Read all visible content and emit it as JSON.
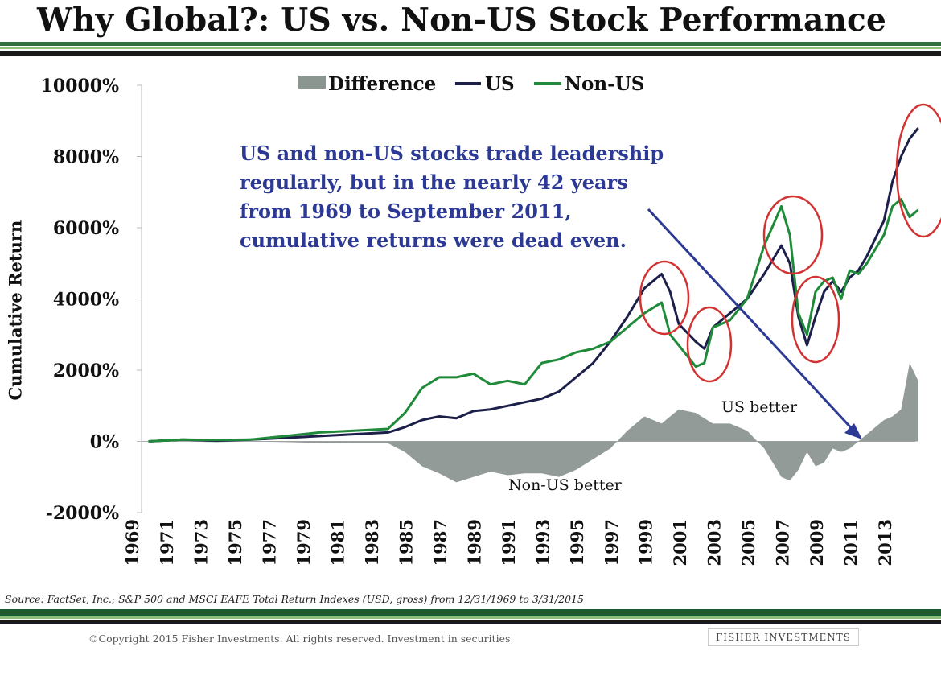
{
  "header": {
    "title": "Why Global?: US vs. Non-US Stock Performance"
  },
  "footer": {
    "source": "Source: FactSet, Inc.; S&P 500 and MSCI EAFE Total Return Indexes (USD, gross) from 12/31/1969 to 3/31/2015",
    "copyright": "©Copyright 2015 Fisher Investments. All rights reserved. Investment in securities",
    "brand": "FISHER INVESTMENTS"
  },
  "annotations": {
    "callout": [
      "US and non-US stocks trade leadership",
      "regularly, but in the nearly 42 years",
      "from 1969 to September 2011,",
      "cumulative returns were dead even."
    ],
    "us_better": "US better",
    "non_us_better": "Non-US better"
  },
  "colors": {
    "us": "#1c1f4a",
    "non_us": "#1f8a3a",
    "difference": "#8c9691",
    "highlight": "#d23232",
    "callout": "#2c3a95",
    "arrow": "#2c3a95"
  },
  "chart_data": {
    "type": "line",
    "title": "Why Global?: US vs. Non-US Stock Performance",
    "xlabel": "",
    "ylabel": "Cumulative Return",
    "xlim": [
      1969.6,
      2015.3
    ],
    "ylim": [
      -2000,
      10000
    ],
    "yticks": [
      -2000,
      0,
      2000,
      4000,
      6000,
      8000,
      10000
    ],
    "ytick_labels": [
      "-2000%",
      "0%",
      "2000%",
      "4000%",
      "6000%",
      "8000%",
      "10000%"
    ],
    "xticks": [
      1969,
      1971,
      1973,
      1975,
      1977,
      1979,
      1981,
      1983,
      1985,
      1987,
      1989,
      1991,
      1993,
      1995,
      1997,
      1999,
      2001,
      2003,
      2005,
      2007,
      2009,
      2011,
      2013
    ],
    "legend_placement": "top-center",
    "grid": false,
    "series": [
      {
        "name": "Difference",
        "type": "area",
        "x": [
          1970,
          1972,
          1974,
          1976,
          1978,
          1980,
          1982,
          1984,
          1985,
          1986,
          1987,
          1988,
          1989,
          1990,
          1991,
          1992,
          1993,
          1994,
          1995,
          1996,
          1997,
          1998,
          1999,
          2000,
          2001,
          2002,
          2003,
          2004,
          2005,
          2006,
          2006.5,
          2007,
          2007.5,
          2008,
          2008.5,
          2009,
          2009.5,
          2010,
          2010.5,
          2011,
          2011.5,
          2012,
          2013,
          2013.5,
          2014,
          2014.5,
          2015
        ],
        "values": [
          0,
          0,
          -20,
          0,
          -20,
          -40,
          -50,
          -50,
          -300,
          -700,
          -900,
          -1150,
          -1000,
          -850,
          -950,
          -900,
          -900,
          -1000,
          -800,
          -500,
          -200,
          300,
          700,
          500,
          900,
          800,
          500,
          500,
          300,
          -200,
          -600,
          -1000,
          -1100,
          -800,
          -300,
          -700,
          -600,
          -200,
          -300,
          -200,
          0,
          200,
          600,
          700,
          900,
          2200,
          1700
        ]
      },
      {
        "name": "US",
        "x": [
          1970,
          1972,
          1974,
          1976,
          1978,
          1980,
          1982,
          1984,
          1985,
          1986,
          1987,
          1988,
          1989,
          1990,
          1991,
          1992,
          1993,
          1994,
          1995,
          1996,
          1997,
          1998,
          1999,
          2000,
          2000.5,
          2001,
          2002,
          2002.5,
          2003,
          2004,
          2005,
          2006,
          2007,
          2007.5,
          2008,
          2008.5,
          2009,
          2009.5,
          2010,
          2010.5,
          2011,
          2011.5,
          2012,
          2013,
          2013.5,
          2014,
          2014.5,
          2015
        ],
        "values": [
          0,
          50,
          20,
          50,
          100,
          150,
          200,
          250,
          400,
          600,
          700,
          650,
          850,
          900,
          1000,
          1100,
          1200,
          1400,
          1800,
          2200,
          2800,
          3500,
          4300,
          4700,
          4200,
          3300,
          2800,
          2600,
          3200,
          3600,
          4000,
          4700,
          5500,
          5000,
          3500,
          2700,
          3500,
          4200,
          4500,
          4200,
          4600,
          4800,
          5200,
          6200,
          7300,
          8000,
          8500,
          8800
        ]
      },
      {
        "name": "Non-US",
        "x": [
          1970,
          1972,
          1974,
          1976,
          1978,
          1980,
          1982,
          1984,
          1985,
          1986,
          1987,
          1988,
          1989,
          1990,
          1991,
          1992,
          1993,
          1994,
          1995,
          1996,
          1997,
          1998,
          1999,
          2000,
          2000.5,
          2001,
          2002,
          2002.5,
          2003,
          2004,
          2005,
          2006,
          2007,
          2007.5,
          2008,
          2008.5,
          2009,
          2009.5,
          2010,
          2010.5,
          2011,
          2011.5,
          2012,
          2013,
          2013.5,
          2014,
          2014.5,
          2015
        ],
        "values": [
          0,
          50,
          40,
          50,
          150,
          250,
          300,
          350,
          800,
          1500,
          1800,
          1800,
          1900,
          1600,
          1700,
          1600,
          2200,
          2300,
          2500,
          2600,
          2800,
          3200,
          3600,
          3900,
          3000,
          2700,
          2100,
          2200,
          3200,
          3400,
          4000,
          5500,
          6600,
          5800,
          3600,
          3000,
          4200,
          4500,
          4600,
          4000,
          4800,
          4700,
          5000,
          5800,
          6600,
          6800,
          6300,
          6500
        ]
      }
    ]
  }
}
